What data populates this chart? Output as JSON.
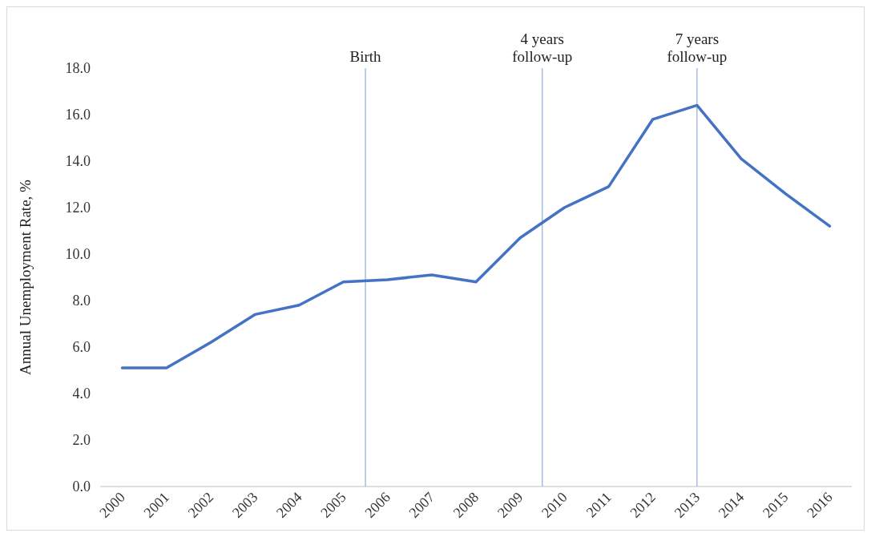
{
  "chart_data": {
    "type": "line",
    "ylabel": "Annual Unemployment Rate, %",
    "x": [
      2000,
      2001,
      2002,
      2003,
      2004,
      2005,
      2006,
      2007,
      2008,
      2009,
      2010,
      2011,
      2012,
      2013,
      2014,
      2015,
      2016
    ],
    "xlim": [
      1999.5,
      2016.5
    ],
    "xticks": [
      2000,
      2001,
      2002,
      2003,
      2004,
      2005,
      2006,
      2007,
      2008,
      2009,
      2010,
      2011,
      2012,
      2013,
      2014,
      2015,
      2016
    ],
    "ylim": [
      0,
      18
    ],
    "yticks": [
      {
        "value": 0,
        "label": "0.0"
      },
      {
        "value": 2,
        "label": "2.0"
      },
      {
        "value": 4,
        "label": "4.0"
      },
      {
        "value": 6,
        "label": "6.0"
      },
      {
        "value": 8,
        "label": "8.0"
      },
      {
        "value": 10,
        "label": "10.0"
      },
      {
        "value": 12,
        "label": "12.0"
      },
      {
        "value": 14,
        "label": "14.0"
      },
      {
        "value": 16,
        "label": "16.0"
      },
      {
        "value": 18,
        "label": "18.0"
      }
    ],
    "series": [
      {
        "color": "#4472c4",
        "values": [
          5.1,
          5.1,
          6.2,
          7.4,
          7.8,
          8.8,
          8.9,
          9.1,
          8.8,
          10.7,
          12.0,
          12.9,
          15.8,
          16.4,
          14.1,
          12.6,
          11.2
        ]
      }
    ],
    "ref_lines": [
      {
        "axis": "x",
        "value": 2005.5,
        "label": "Birth",
        "color": "#8faadc"
      },
      {
        "axis": "x",
        "value": 2009.5,
        "label": "4 years follow-up",
        "color": "#8faadc"
      },
      {
        "axis": "x",
        "value": 2013,
        "label": "7 years follow-up",
        "color": "#8faadc"
      }
    ],
    "grid": false,
    "marker": "none",
    "line_style": "solid"
  }
}
